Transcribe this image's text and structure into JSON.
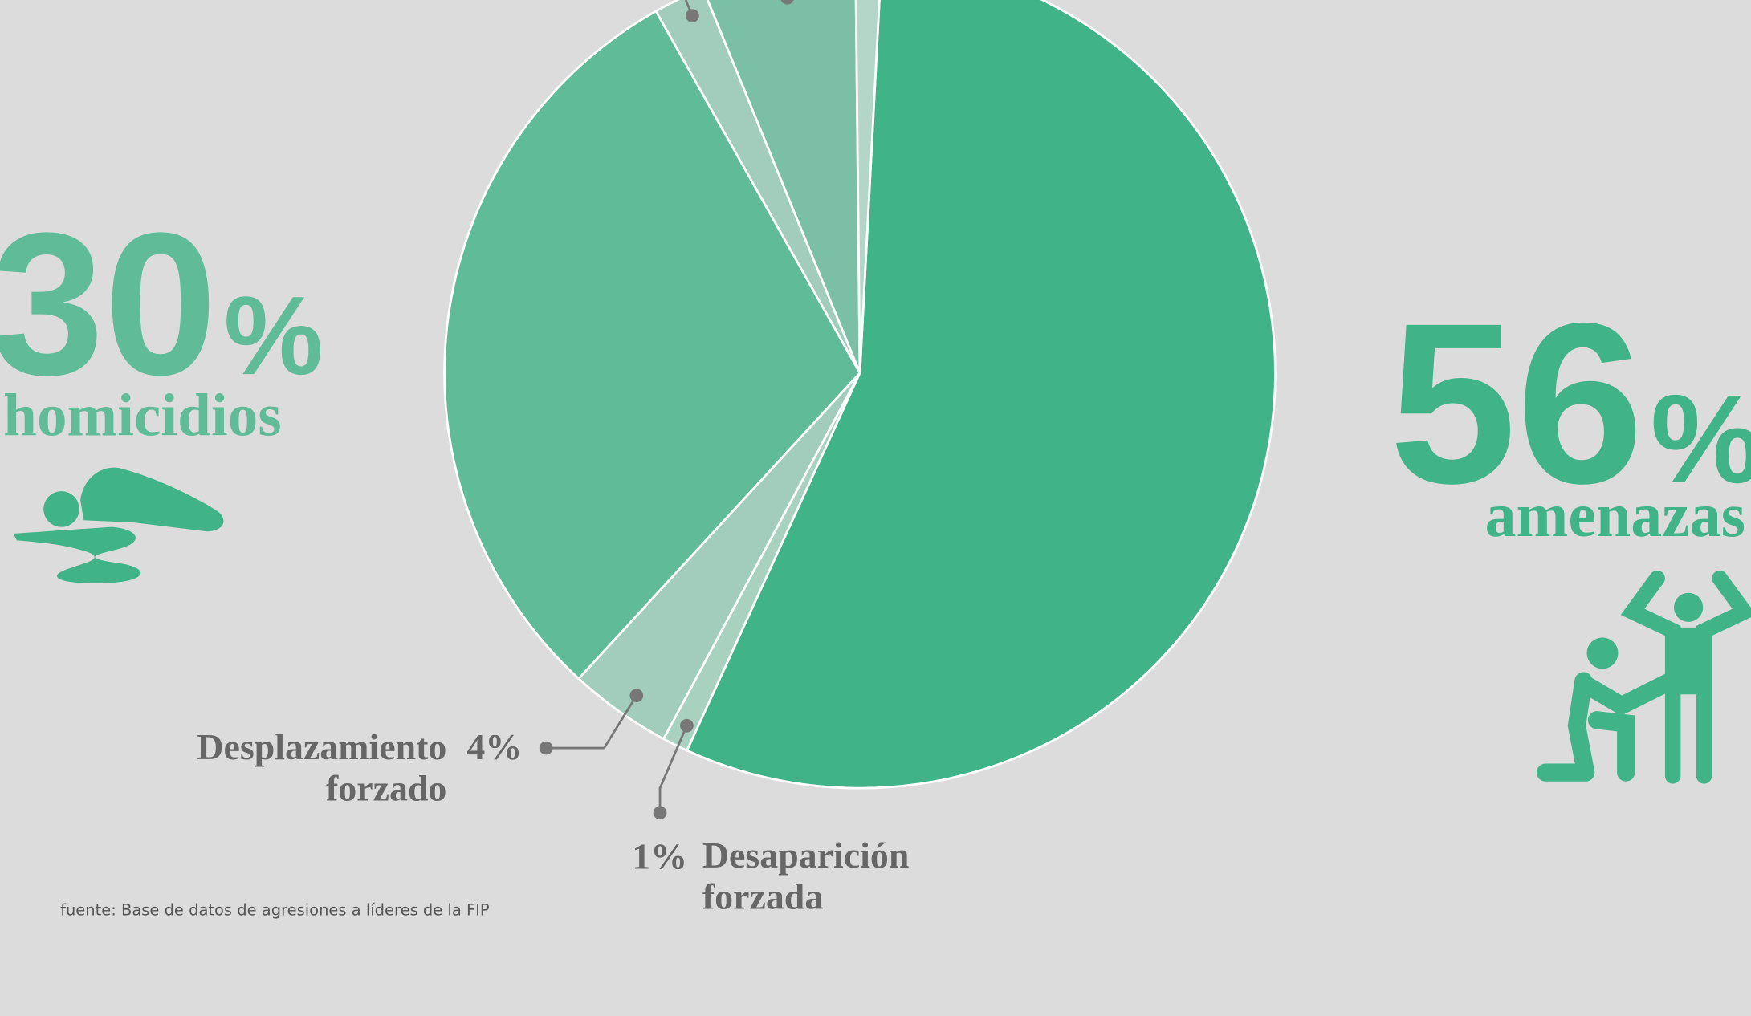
{
  "chart_data": {
    "type": "pie",
    "categories": [
      "amenazas",
      "Desaparición forzada",
      "Desplazamiento forzado",
      "homicidios",
      null,
      null,
      null
    ],
    "values": [
      56,
      1,
      4,
      30,
      2,
      6,
      1
    ],
    "value_labels": [
      "56%",
      "1%",
      "4%",
      "30%",
      null,
      null,
      null
    ],
    "colors": [
      "#41b388",
      "#a8d1c0",
      "#a2cdbc",
      "#5fbb98",
      "#a2cdbc",
      "#7bc0a6",
      "#b4d6c8"
    ],
    "source": "fuente: Base de datos de agresiones a líderes de la FIP"
  }
}
